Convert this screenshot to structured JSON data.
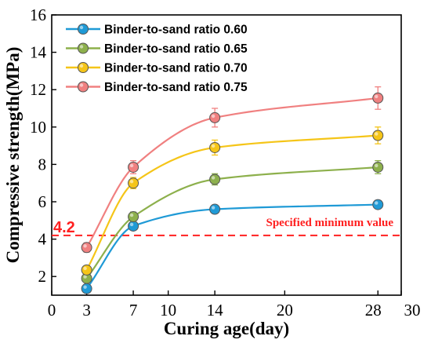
{
  "chart_data": {
    "type": "line",
    "title": "",
    "xlabel": "Curing age(day)",
    "ylabel": "Compressive strength(MPa)",
    "xlim": [
      0,
      30
    ],
    "ylim": [
      1,
      16
    ],
    "x_ticks": [
      0,
      3,
      7,
      10,
      14,
      20,
      28,
      30
    ],
    "y_ticks": [
      2,
      4,
      6,
      8,
      10,
      12,
      14,
      16
    ],
    "grid": false,
    "legend_position": "top-left",
    "x": [
      3,
      7,
      14,
      28
    ],
    "series": [
      {
        "name": "Binder-to-sand ratio 0.60",
        "color": "#1f9ad6",
        "values": [
          1.35,
          4.7,
          5.6,
          5.85
        ],
        "errors": [
          0.12,
          0.2,
          0.15,
          0.15
        ]
      },
      {
        "name": "Binder-to-sand ratio 0.65",
        "color": "#8db04c",
        "values": [
          1.9,
          5.2,
          7.2,
          7.85
        ],
        "errors": [
          0.15,
          0.25,
          0.3,
          0.35
        ]
      },
      {
        "name": "Binder-to-sand ratio 0.70",
        "color": "#f5c518",
        "values": [
          2.35,
          7.0,
          8.9,
          9.55
        ],
        "errors": [
          0.2,
          0.3,
          0.4,
          0.45
        ]
      },
      {
        "name": "Binder-to-sand ratio 0.75",
        "color": "#f08080",
        "values": [
          3.55,
          7.85,
          10.5,
          11.55
        ],
        "errors": [
          0.25,
          0.35,
          0.5,
          0.6
        ]
      }
    ],
    "reference_line": {
      "y": 4.2,
      "value_label": "4.2",
      "label": "Specified minimum value",
      "color": "#ff2020"
    }
  }
}
